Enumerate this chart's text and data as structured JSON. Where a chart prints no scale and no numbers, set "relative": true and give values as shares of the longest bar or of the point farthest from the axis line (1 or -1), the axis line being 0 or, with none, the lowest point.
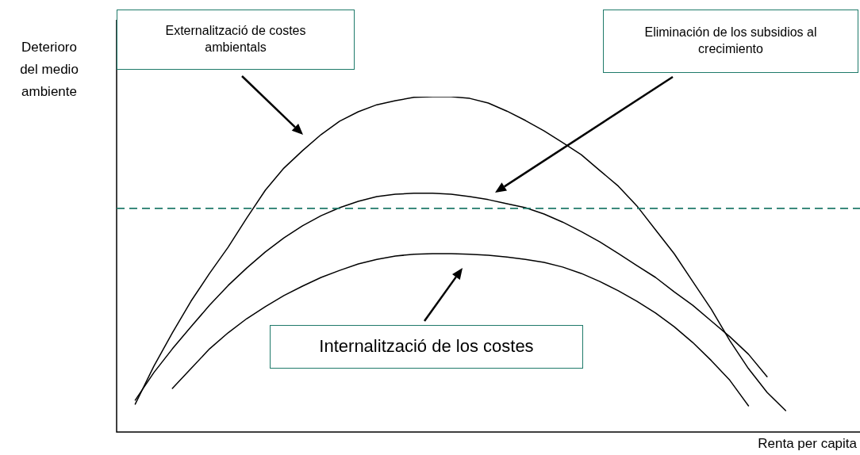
{
  "chart_data": {
    "type": "line",
    "relative": true,
    "xlabel": "Renta per capita",
    "ylabel": "Deterioro del medio ambiente",
    "categories": [
      null,
      null,
      null,
      null,
      null,
      null,
      null,
      null,
      null,
      null,
      null,
      null,
      null,
      null,
      null,
      null,
      null,
      null,
      null,
      null,
      null,
      null,
      null,
      null,
      null,
      null,
      null,
      null,
      null,
      null,
      null,
      null,
      null,
      null,
      null,
      null,
      null,
      null,
      null,
      null,
      null
    ],
    "series": [
      {
        "color": "#000000",
        "values": [
          null,
          0.083,
          0.196,
          0.296,
          0.39,
          0.473,
          0.551,
          0.638,
          0.721,
          0.787,
          0.839,
          0.887,
          0.927,
          0.955,
          0.976,
          0.988,
          0.998,
          1,
          1,
          0.995,
          0.981,
          0.957,
          0.929,
          0.898,
          0.863,
          0.827,
          0.78,
          0.733,
          0.674,
          0.603,
          0.532,
          0.449,
          0.366,
          0.272,
          0.189,
          0.118,
          0.064,
          null,
          null,
          null,
          null
        ]
      },
      {
        "color": "#000000",
        "values": [
          null,
          0.095,
          0.177,
          0.248,
          0.314,
          0.378,
          0.437,
          0.489,
          0.537,
          0.579,
          0.615,
          0.645,
          0.669,
          0.688,
          0.702,
          0.709,
          0.712,
          0.712,
          0.709,
          0.702,
          0.693,
          0.681,
          0.669,
          0.65,
          0.626,
          0.598,
          0.567,
          0.532,
          0.496,
          0.461,
          0.418,
          0.378,
          0.331,
          0.284,
          0.232,
          0.165,
          null,
          null,
          null,
          null,
          null
        ]
      },
      {
        "color": "#000000",
        "values": [
          null,
          null,
          null,
          0.13,
          0.189,
          0.248,
          0.296,
          0.338,
          0.374,
          0.407,
          0.435,
          0.461,
          0.482,
          0.501,
          0.515,
          0.525,
          0.53,
          0.532,
          0.532,
          0.53,
          0.527,
          0.522,
          0.515,
          0.506,
          0.492,
          0.473,
          0.449,
          0.421,
          0.39,
          0.355,
          0.314,
          0.267,
          0.213,
          0.154,
          0.078,
          null,
          null,
          null,
          null,
          null,
          null
        ]
      }
    ],
    "ref_lines": [
      {
        "axis": "y",
        "value": 0.667,
        "color": "#1f7a6a",
        "line_style": "dashed"
      }
    ],
    "annotations": [
      "Externalització de costes ambientals",
      "Eliminación de los subsidios al crecimiento",
      "Internalització de los costes"
    ],
    "marker": "none",
    "line_style": "solid",
    "grid": false,
    "legend": false
  }
}
